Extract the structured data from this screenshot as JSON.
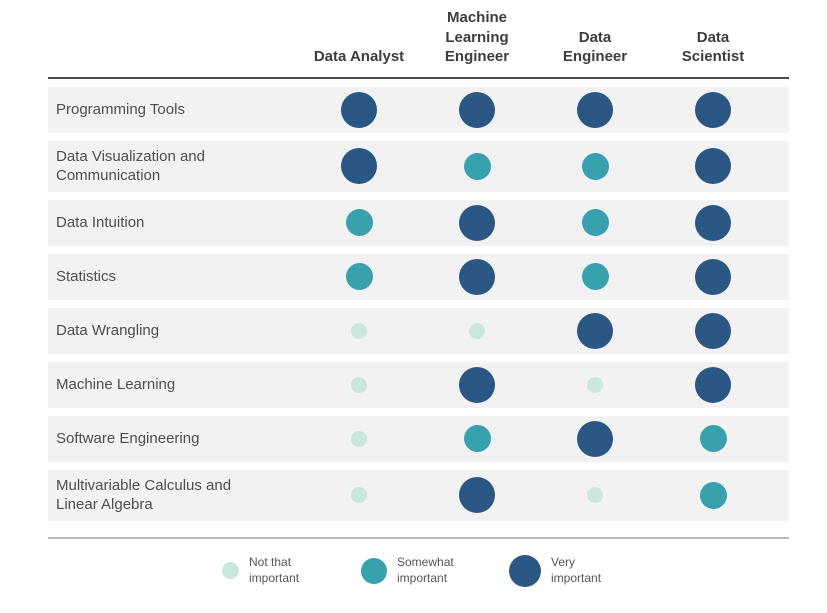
{
  "chart_data": {
    "type": "heatmap",
    "title": "",
    "columns": [
      "Data Analyst",
      "Machine Learning Engineer",
      "Data Engineer",
      "Data Scientist"
    ],
    "rows": [
      "Programming Tools",
      "Data Visualization and Communication",
      "Data Intuition",
      "Statistics",
      "Data Wrangling",
      "Machine Learning",
      "Software Engineering",
      "Multivariable Calculus and Linear Algebra"
    ],
    "values": [
      [
        "very",
        "very",
        "very",
        "very"
      ],
      [
        "very",
        "somewhat",
        "somewhat",
        "very"
      ],
      [
        "somewhat",
        "very",
        "somewhat",
        "very"
      ],
      [
        "somewhat",
        "very",
        "somewhat",
        "very"
      ],
      [
        "not",
        "not",
        "very",
        "very"
      ],
      [
        "not",
        "very",
        "not",
        "very"
      ],
      [
        "not",
        "somewhat",
        "very",
        "somewhat"
      ],
      [
        "not",
        "very",
        "not",
        "somewhat"
      ]
    ],
    "levels": {
      "not": {
        "label": "Not that important",
        "color": "#c9e7da",
        "size": 16,
        "legend_size": 17
      },
      "somewhat": {
        "label": "Somewhat important",
        "color": "#37a2ae",
        "size": 27,
        "legend_size": 26
      },
      "very": {
        "label": "Very important",
        "color": "#2a5783",
        "size": 36,
        "legend_size": 32
      }
    },
    "legend_order": [
      "not",
      "somewhat",
      "very"
    ],
    "layout": {
      "legend_position": "bottom",
      "grid": "row-bands",
      "row_band_color": "#f2f2f2",
      "header_rule_color": "#4a4a4a",
      "footer_rule_color": "#b9b9b9",
      "text_color": "#4e4e4e"
    }
  }
}
